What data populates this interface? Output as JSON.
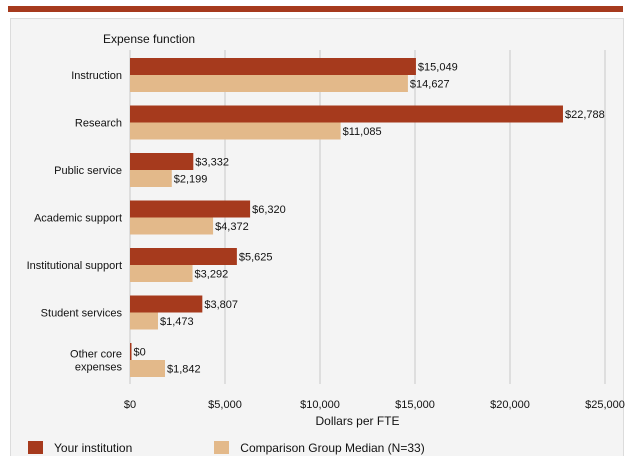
{
  "colors": {
    "your_institution": "#a63a1d",
    "comparison": "#e3b98a",
    "grid": "#c8c8c8",
    "top_rule": "#a63a1d"
  },
  "legend": {
    "your_institution": "Your institution",
    "comparison": "Comparison Group Median (N=33)"
  },
  "chart_data": {
    "type": "bar",
    "orientation": "horizontal",
    "y_header": "Expense function",
    "xlabel": "Dollars per FTE",
    "xlim": [
      0,
      25000
    ],
    "x_ticks": [
      "$0",
      "$5,000",
      "$10,000",
      "$15,000",
      "$20,000",
      "$25,000"
    ],
    "grid": true,
    "legend_position": "bottom",
    "categories": [
      [
        "Instruction"
      ],
      [
        "Research"
      ],
      [
        "Public service"
      ],
      [
        "Academic support"
      ],
      [
        "Institutional support"
      ],
      [
        "Student services"
      ],
      [
        "Other core",
        "expenses"
      ]
    ],
    "series": [
      {
        "name": "Your institution",
        "values": [
          15049,
          22788,
          3332,
          6320,
          5625,
          3807,
          0
        ],
        "labels": [
          "$15,049",
          "$22,788",
          "$3,332",
          "$6,320",
          "$5,625",
          "$3,807",
          "$0"
        ]
      },
      {
        "name": "Comparison Group Median (N=33)",
        "values": [
          14627,
          11085,
          2199,
          4372,
          3292,
          1473,
          1842
        ],
        "labels": [
          "$14,627",
          "$11,085",
          "$2,199",
          "$4,372",
          "$3,292",
          "$1,473",
          "$1,842"
        ]
      }
    ]
  }
}
